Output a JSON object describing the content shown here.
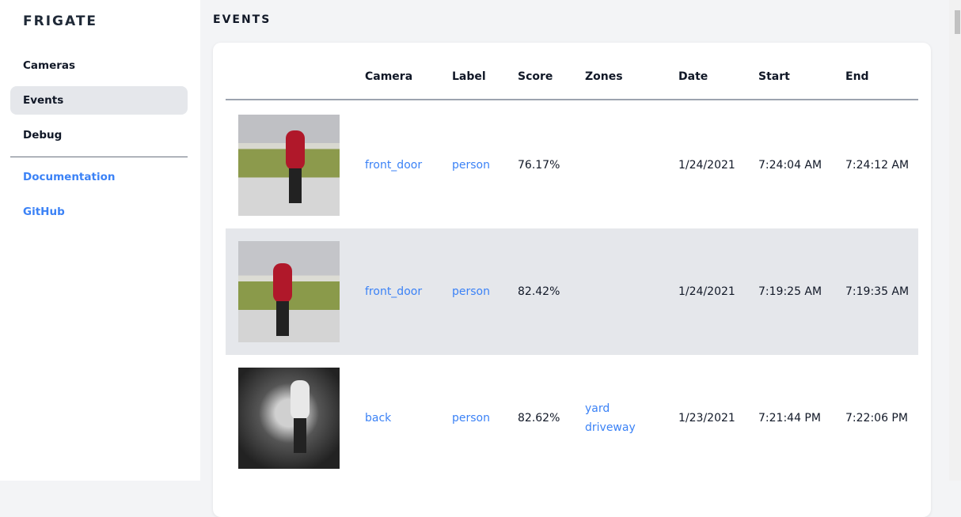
{
  "sidebar": {
    "brand": "FRIGATE",
    "items": [
      {
        "label": "Cameras"
      },
      {
        "label": "Events",
        "active": true
      },
      {
        "label": "Debug"
      }
    ],
    "links": [
      {
        "label": "Documentation"
      },
      {
        "label": "GitHub"
      }
    ]
  },
  "main": {
    "title": "EVENTS",
    "columns": [
      "Camera",
      "Label",
      "Score",
      "Zones",
      "Date",
      "Start",
      "End"
    ],
    "rows": [
      {
        "camera": "front_door",
        "label": "person",
        "score": "76.17%",
        "zones": [
          "",
          ""
        ],
        "date": "1/24/2021",
        "start": "7:24:04 AM",
        "end": "7:24:12 AM"
      },
      {
        "camera": "front_door",
        "label": "person",
        "score": "82.42%",
        "zones": [
          "",
          ""
        ],
        "date": "1/24/2021",
        "start": "7:19:25 AM",
        "end": "7:19:35 AM"
      },
      {
        "camera": "back",
        "label": "person",
        "score": "82.62%",
        "zones": [
          "yard",
          "driveway"
        ],
        "date": "1/23/2021",
        "start": "7:21:44 PM",
        "end": "7:22:06 PM"
      }
    ]
  },
  "colors": {
    "accent": "#3b82f6",
    "active_bg": "#e5e7eb"
  }
}
